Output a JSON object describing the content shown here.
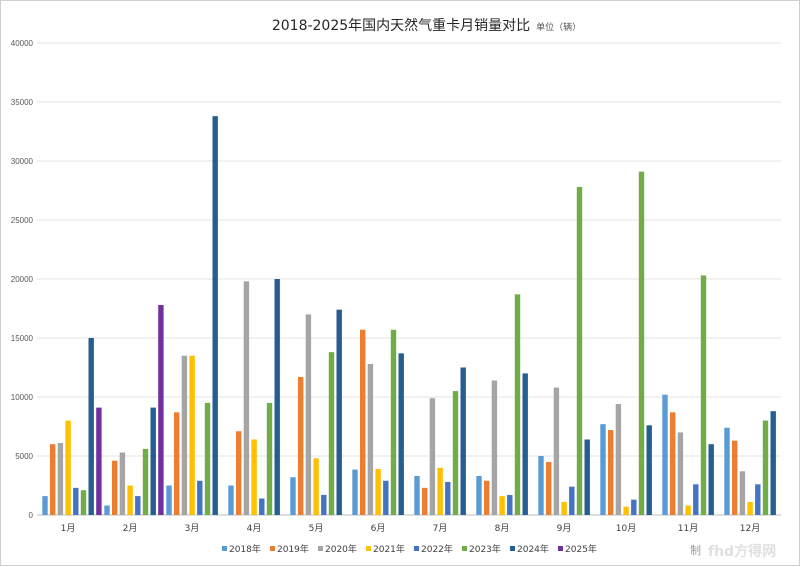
{
  "chart_data": {
    "type": "bar",
    "title": "2018-2025年国内天然气重卡月销量对比",
    "unit_note": "单位（辆）",
    "ylim": [
      0,
      40000
    ],
    "yticks": [
      0,
      5000,
      10000,
      15000,
      20000,
      25000,
      30000,
      35000,
      40000
    ],
    "grid": true,
    "legend_position": "bottom",
    "categories": [
      "1月",
      "2月",
      "3月",
      "4月",
      "5月",
      "6月",
      "7月",
      "8月",
      "9月",
      "10月",
      "11月",
      "12月"
    ],
    "series": [
      {
        "name": "2018年",
        "color": "#5b9bd5",
        "values": [
          1600,
          800,
          2500,
          2500,
          3200,
          3850,
          3300,
          3300,
          5000,
          7700,
          10200,
          7400
        ]
      },
      {
        "name": "2019年",
        "color": "#ed7d31",
        "values": [
          6000,
          4600,
          8700,
          7100,
          11700,
          15700,
          2300,
          2900,
          4500,
          7200,
          8700,
          6300
        ]
      },
      {
        "name": "2020年",
        "color": "#a5a5a5",
        "values": [
          6100,
          5300,
          13500,
          19800,
          17000,
          12800,
          9900,
          11400,
          10800,
          9400,
          7000,
          3700
        ]
      },
      {
        "name": "2021年",
        "color": "#ffc000",
        "values": [
          8000,
          2500,
          13500,
          6400,
          4800,
          3900,
          4000,
          1600,
          1100,
          700,
          800,
          1100
        ]
      },
      {
        "name": "2022年",
        "color": "#4472c4",
        "values": [
          2300,
          1600,
          2900,
          1400,
          1700,
          2900,
          2800,
          1700,
          2400,
          1300,
          2600,
          2600
        ]
      },
      {
        "name": "2023年",
        "color": "#70ad47",
        "values": [
          2100,
          5600,
          9500,
          9500,
          13800,
          15700,
          10500,
          18700,
          27800,
          29100,
          20300,
          8000
        ]
      },
      {
        "name": "2024年",
        "color": "#255e91",
        "values": [
          15000,
          9100,
          33800,
          20000,
          17400,
          13700,
          12500,
          12000,
          6400,
          7600,
          6000,
          8800
        ]
      },
      {
        "name": "2025年",
        "color": "#7030a0",
        "values": [
          9100,
          17800,
          null,
          null,
          null,
          null,
          null,
          null,
          null,
          null,
          null,
          null
        ]
      }
    ]
  },
  "watermark": {
    "brand": "fhd方得网",
    "source_prefix": "制"
  }
}
